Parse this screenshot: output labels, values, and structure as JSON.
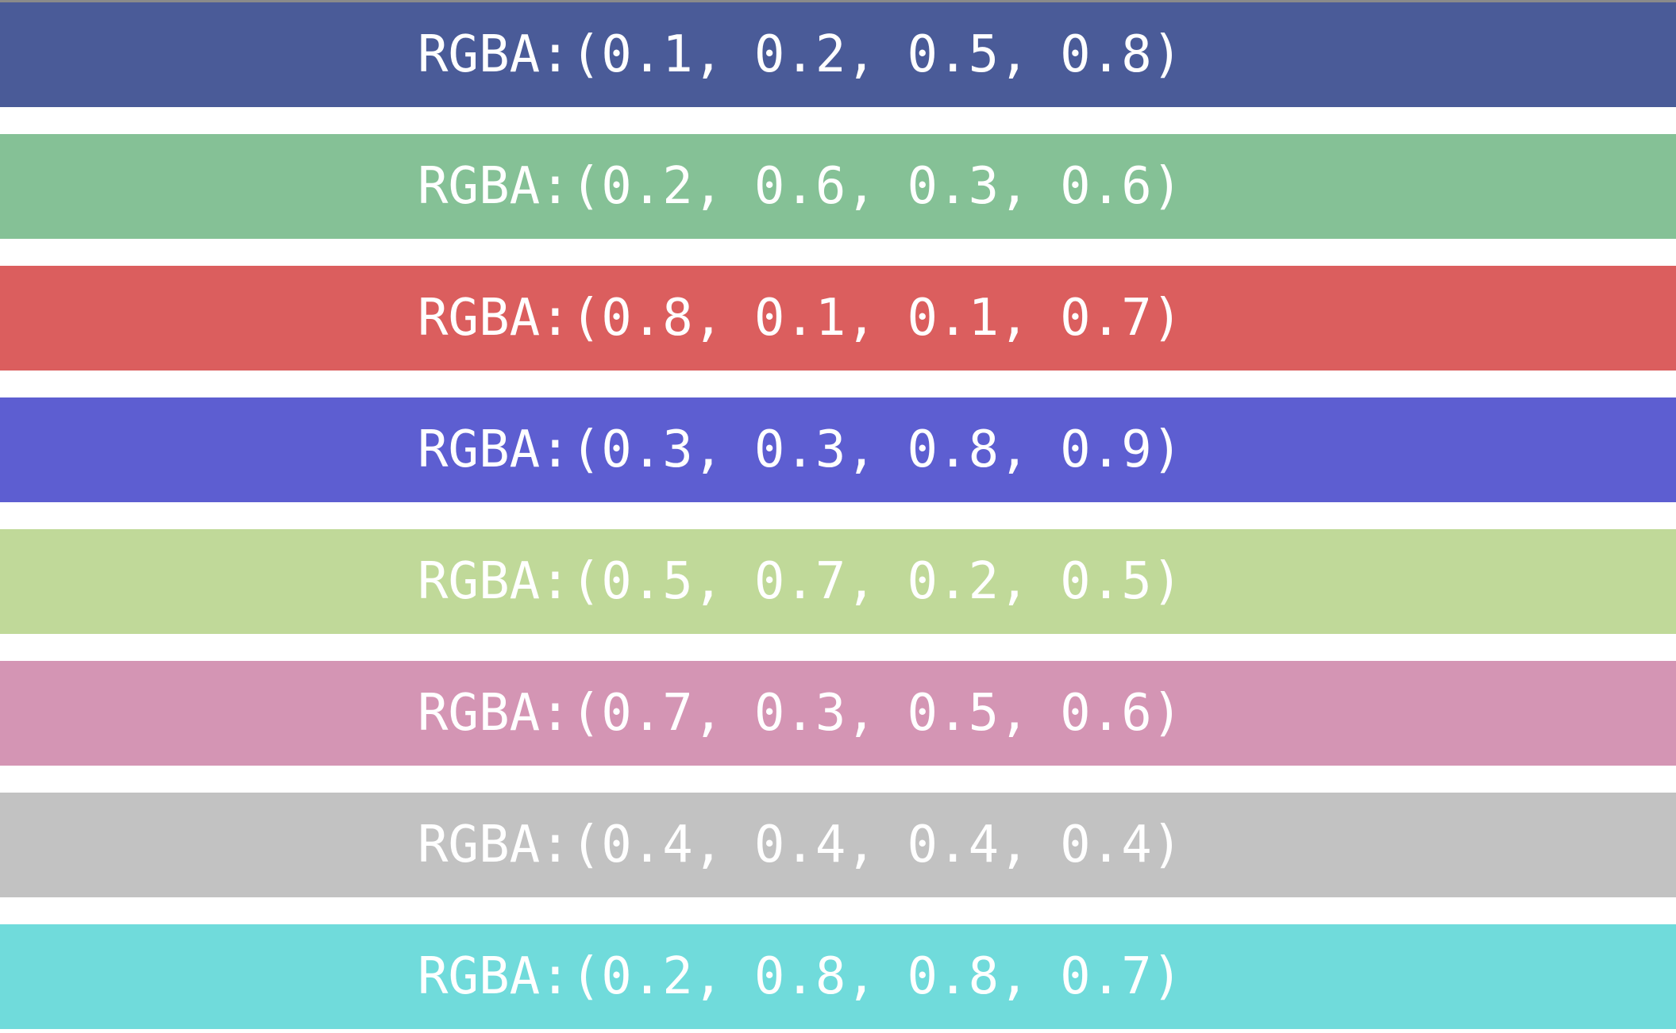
{
  "swatches": [
    {
      "label": "RGBA:(0.1, 0.2, 0.5, 0.8)",
      "rgba": [
        0.1,
        0.2,
        0.5,
        0.8
      ],
      "color": "#4a5b98"
    },
    {
      "label": "RGBA:(0.2, 0.6, 0.3, 0.6)",
      "rgba": [
        0.2,
        0.6,
        0.3,
        0.6
      ],
      "color": "#85c196"
    },
    {
      "label": "RGBA:(0.8, 0.1, 0.1, 0.7)",
      "rgba": [
        0.8,
        0.1,
        0.1,
        0.7
      ],
      "color": "#db5e5e"
    },
    {
      "label": "RGBA:(0.3, 0.3, 0.8, 0.9)",
      "rgba": [
        0.3,
        0.3,
        0.8,
        0.9
      ],
      "color": "#5d5ed1"
    },
    {
      "label": "RGBA:(0.5, 0.7, 0.2, 0.5)",
      "rgba": [
        0.5,
        0.7,
        0.2,
        0.5
      ],
      "color": "#c0d999"
    },
    {
      "label": "RGBA:(0.7, 0.3, 0.5, 0.6)",
      "rgba": [
        0.7,
        0.3,
        0.5,
        0.6
      ],
      "color": "#d495b4"
    },
    {
      "label": "RGBA:(0.4, 0.4, 0.4, 0.4)",
      "rgba": [
        0.4,
        0.4,
        0.4,
        0.4
      ],
      "color": "#c2c2c2"
    },
    {
      "label": "RGBA:(0.2, 0.8, 0.8, 0.7)",
      "rgba": [
        0.2,
        0.8,
        0.8,
        0.7
      ],
      "color": "#70dbdb"
    }
  ]
}
